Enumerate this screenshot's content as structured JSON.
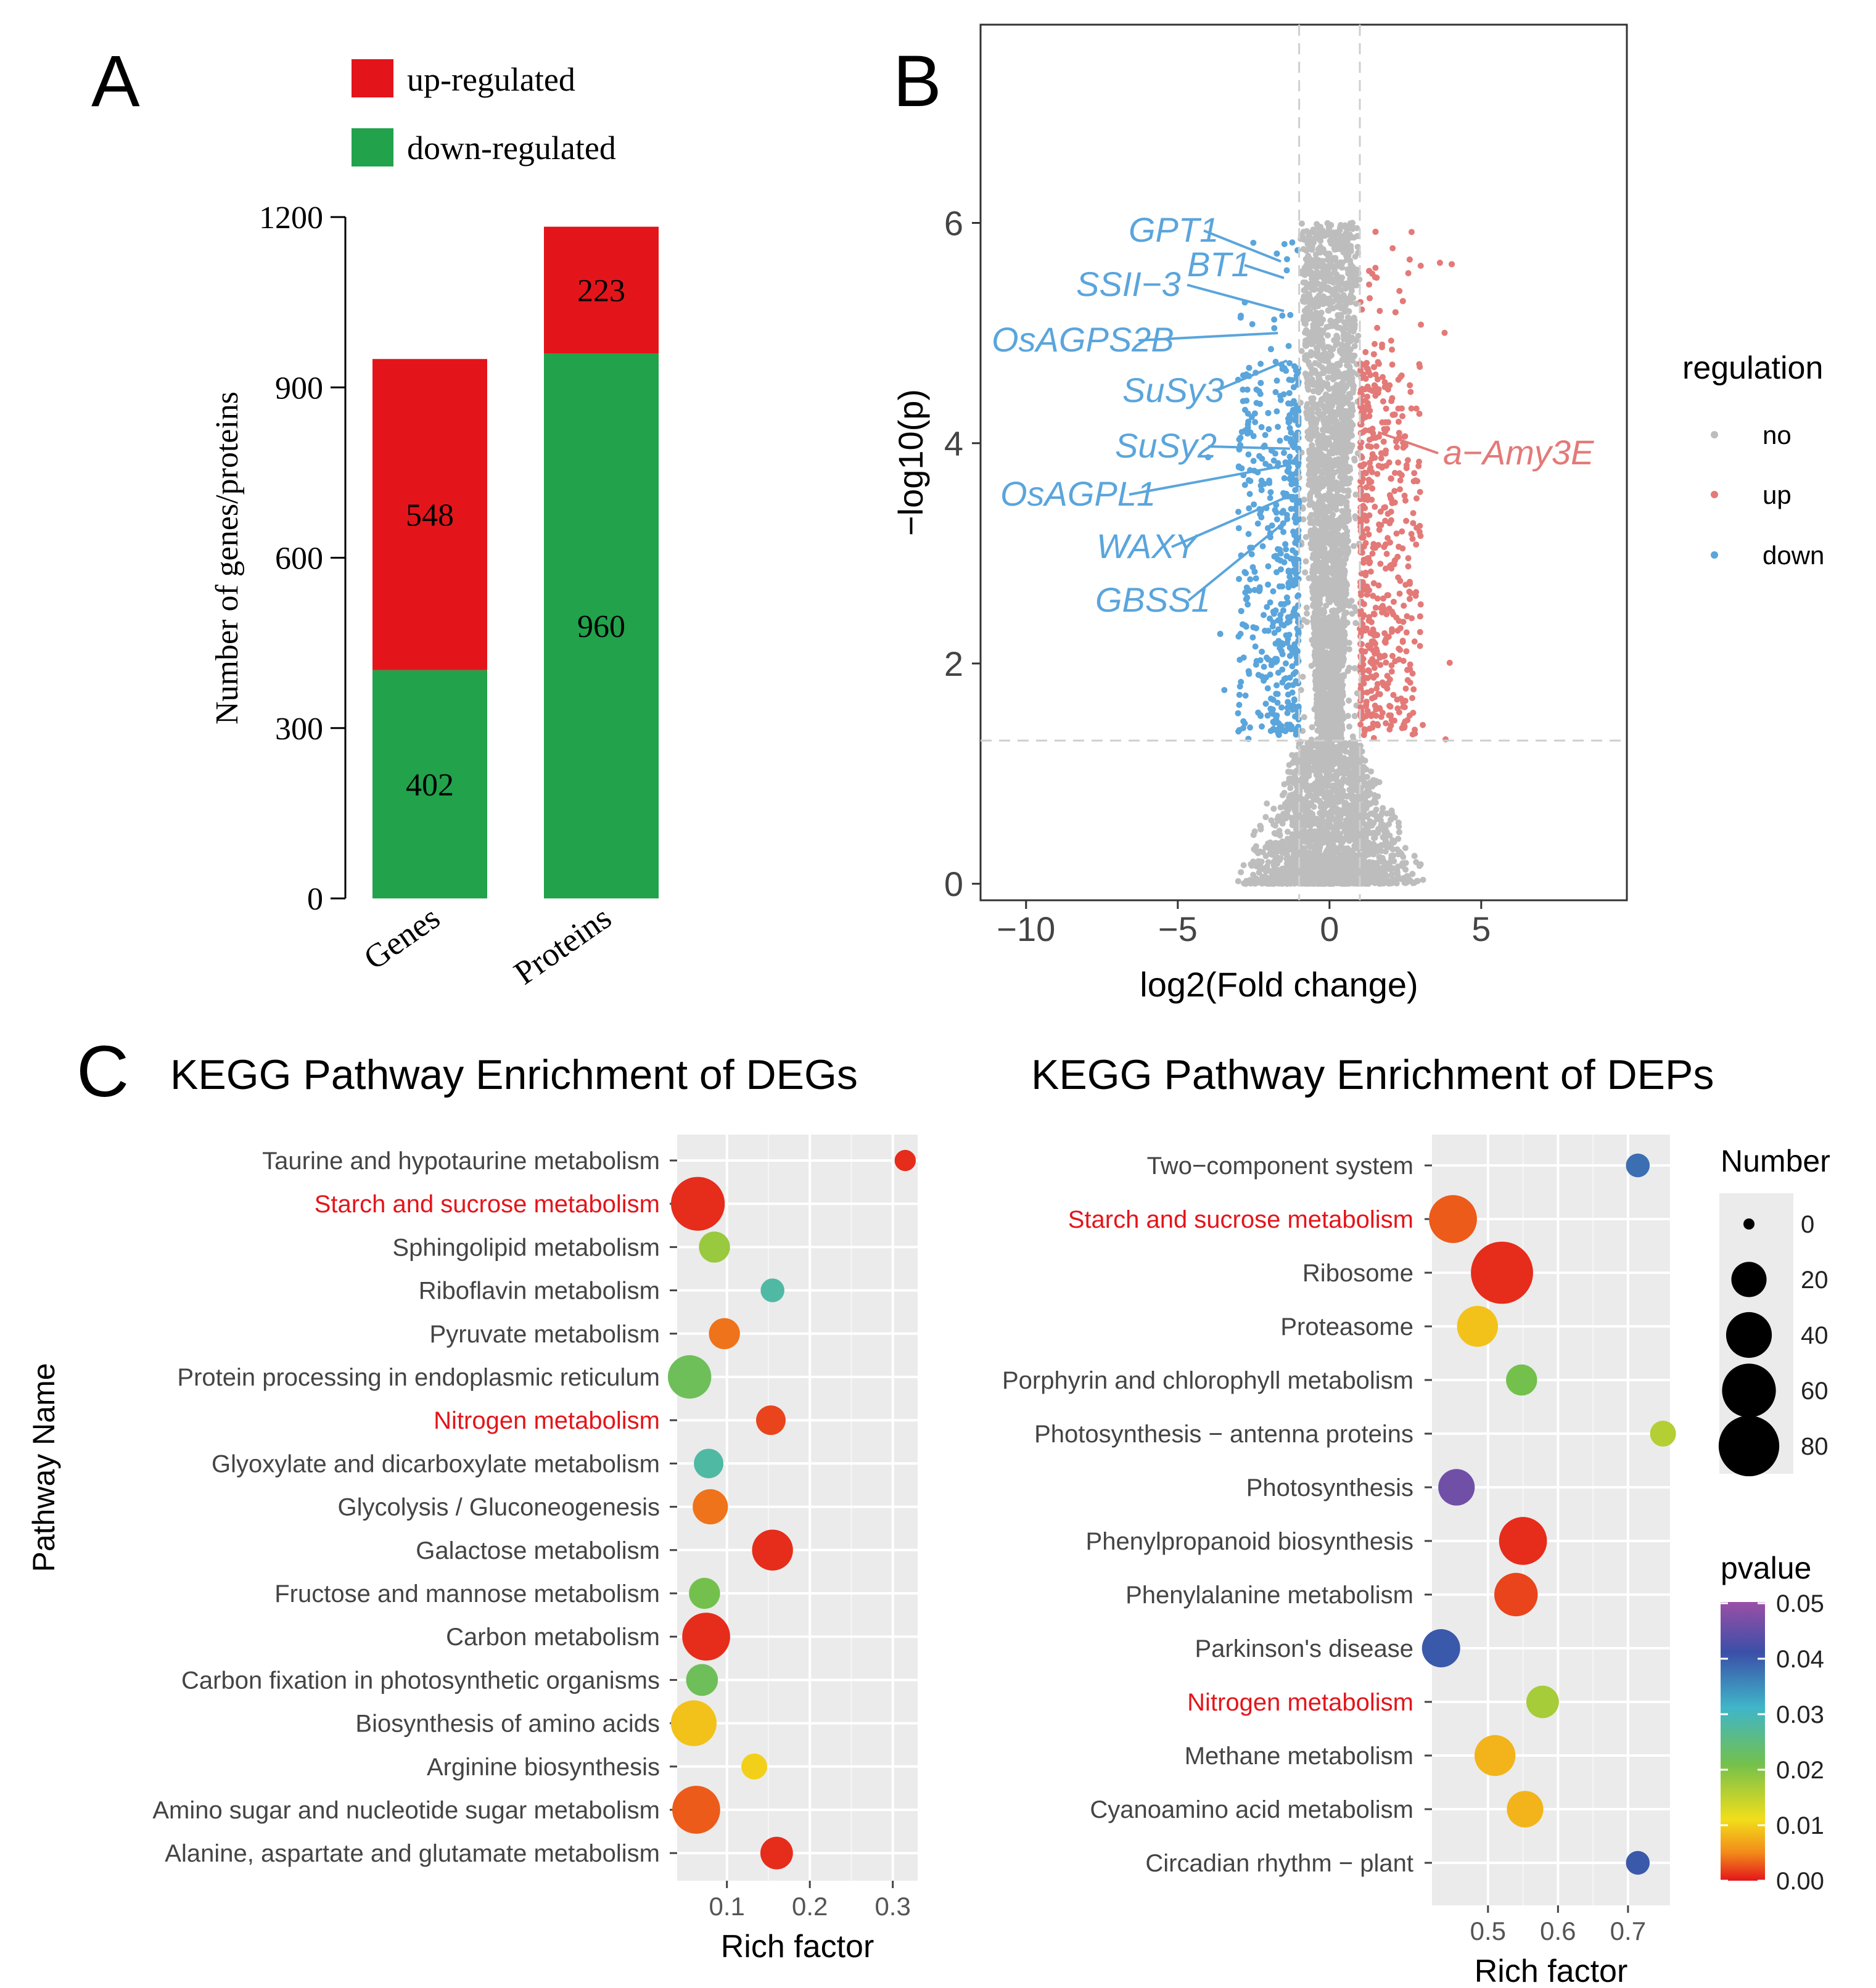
{
  "panel_labels": {
    "a": "A",
    "b": "B",
    "c": "C"
  },
  "colors": {
    "up": "#e3151b",
    "down": "#21a24b",
    "volcano_no": "#bdbdbd",
    "volcano_up": "#e37a78",
    "volcano_down": "#5aa5dc",
    "panel_bg": "#ebebeb",
    "grid": "#ffffff",
    "highlight": "#e3151b"
  },
  "chart_data": [
    {
      "id": "A",
      "type": "bar",
      "stacked": true,
      "categories": [
        "Genes",
        "Proteins"
      ],
      "series": [
        {
          "name": "down-regulated",
          "values": [
            402,
            960
          ]
        },
        {
          "name": "up-regulated",
          "values": [
            548,
            223
          ]
        }
      ],
      "legend": [
        "up-regulated",
        "down-regulated"
      ],
      "ylabel": "Number of genes/proteins",
      "yticks": [
        "0",
        "300",
        "600",
        "900",
        "1200"
      ],
      "ylim": [
        0,
        1200
      ],
      "legend_position": "top"
    },
    {
      "id": "B",
      "type": "scatter",
      "xlabel": "log2(Fold change)",
      "ylabel": "−log10(p)",
      "xticks": [
        "−10",
        "−5",
        "0",
        "5"
      ],
      "yticks": [
        "0",
        "2",
        "4",
        "6"
      ],
      "xlim": [
        -11.5,
        9.8
      ],
      "ylim": [
        -0.15,
        7.8
      ],
      "thresholds": {
        "x": [
          -1,
          1
        ],
        "y": 1.3
      },
      "legend_title": "regulation",
      "legend": [
        "no",
        "up",
        "down"
      ],
      "legend_position": "right",
      "labeled_points": [
        {
          "label": "GPT1",
          "group": "down",
          "x": -1.6,
          "y": 5.65
        },
        {
          "label": "BT1",
          "group": "down",
          "x": -1.5,
          "y": 5.5
        },
        {
          "label": "SSII−3",
          "group": "down",
          "x": -1.5,
          "y": 5.2
        },
        {
          "label": "OsAGPS2B",
          "group": "down",
          "x": -1.7,
          "y": 5.0
        },
        {
          "label": "SuSy3",
          "group": "down",
          "x": -1.4,
          "y": 4.75
        },
        {
          "label": "SuSy2",
          "group": "down",
          "x": -1.3,
          "y": 3.95
        },
        {
          "label": "OsAGPL1",
          "group": "down",
          "x": -1.4,
          "y": 3.8
        },
        {
          "label": "WAXY",
          "group": "down",
          "x": -1.5,
          "y": 3.5
        },
        {
          "label": "GBSS1",
          "group": "down",
          "x": -1.4,
          "y": 3.3
        },
        {
          "label": "a−Amy3E",
          "group": "up",
          "x": 1.6,
          "y": 4.1
        }
      ]
    },
    {
      "id": "C1",
      "type": "scatter",
      "title": "KEGG Pathway Enrichment of DEGs",
      "xlabel": "Rich factor",
      "ylabel": "Pathway Name",
      "xticks": [
        "0.1",
        "0.2",
        "0.3"
      ],
      "xlim": [
        0.04,
        0.33
      ],
      "categories": [
        "Taurine and hypotaurine metabolism",
        "Starch and sucrose metabolism",
        "Sphingolipid metabolism",
        "Riboflavin metabolism",
        "Pyruvate metabolism",
        "Protein processing in endoplasmic reticulum",
        "Nitrogen metabolism",
        "Glyoxylate and dicarboxylate metabolism",
        "Glycolysis / Gluconeogenesis",
        "Galactose metabolism",
        "Fructose and mannose metabolism",
        "Carbon metabolism",
        "Carbon fixation in photosynthetic organisms",
        "Biosynthesis of amino acids",
        "Arginine biosynthesis",
        "Amino sugar and nucleotide sugar metabolism",
        "Alanine, aspartate and glutamate metabolism"
      ],
      "highlighted": [
        "Starch and sucrose metabolism",
        "Nitrogen metabolism"
      ],
      "points": [
        {
          "rich": 0.315,
          "number": 4,
          "pvalue": 0.001
        },
        {
          "rich": 0.065,
          "number": 60,
          "pvalue": 0.001
        },
        {
          "rich": 0.085,
          "number": 14,
          "pvalue": 0.018
        },
        {
          "rich": 0.155,
          "number": 6,
          "pvalue": 0.028
        },
        {
          "rich": 0.097,
          "number": 14,
          "pvalue": 0.004
        },
        {
          "rich": 0.055,
          "number": 35,
          "pvalue": 0.022
        },
        {
          "rich": 0.153,
          "number": 12,
          "pvalue": 0.002
        },
        {
          "rich": 0.078,
          "number": 12,
          "pvalue": 0.028
        },
        {
          "rich": 0.08,
          "number": 20,
          "pvalue": 0.004
        },
        {
          "rich": 0.155,
          "number": 30,
          "pvalue": 0.001
        },
        {
          "rich": 0.073,
          "number": 14,
          "pvalue": 0.021
        },
        {
          "rich": 0.075,
          "number": 45,
          "pvalue": 0.001
        },
        {
          "rich": 0.07,
          "number": 15,
          "pvalue": 0.022
        },
        {
          "rich": 0.06,
          "number": 40,
          "pvalue": 0.009
        },
        {
          "rich": 0.133,
          "number": 8,
          "pvalue": 0.01
        },
        {
          "rich": 0.063,
          "number": 45,
          "pvalue": 0.003
        },
        {
          "rich": 0.16,
          "number": 16,
          "pvalue": 0.001
        }
      ]
    },
    {
      "id": "C2",
      "type": "scatter",
      "title": "KEGG Pathway Enrichment of DEPs",
      "xlabel": "Rich factor",
      "xticks": [
        "0.5",
        "0.6",
        "0.7"
      ],
      "xlim": [
        0.42,
        0.76
      ],
      "categories": [
        "Two−component system",
        "Starch and sucrose metabolism",
        "Ribosome",
        "Proteasome",
        "Porphyrin and chlorophyll metabolism",
        "Photosynthesis − antenna proteins",
        "Photosynthesis",
        "Phenylpropanoid biosynthesis",
        "Phenylalanine metabolism",
        "Parkinson's disease",
        "Nitrogen metabolism",
        "Methane metabolism",
        "Cyanoamino acid metabolism",
        "Circadian rhythm − plant"
      ],
      "highlighted": [
        "Starch and sucrose metabolism",
        "Nitrogen metabolism"
      ],
      "points": [
        {
          "rich": 0.714,
          "number": 6,
          "pvalue": 0.038
        },
        {
          "rich": 0.45,
          "number": 45,
          "pvalue": 0.003
        },
        {
          "rich": 0.52,
          "number": 85,
          "pvalue": 0.001
        },
        {
          "rich": 0.485,
          "number": 30,
          "pvalue": 0.009
        },
        {
          "rich": 0.548,
          "number": 14,
          "pvalue": 0.021
        },
        {
          "rich": 0.75,
          "number": 8,
          "pvalue": 0.016
        },
        {
          "rich": 0.455,
          "number": 22,
          "pvalue": 0.046
        },
        {
          "rich": 0.55,
          "number": 45,
          "pvalue": 0.001
        },
        {
          "rich": 0.54,
          "number": 35,
          "pvalue": 0.002
        },
        {
          "rich": 0.433,
          "number": 25,
          "pvalue": 0.04
        },
        {
          "rich": 0.578,
          "number": 16,
          "pvalue": 0.017
        },
        {
          "rich": 0.51,
          "number": 30,
          "pvalue": 0.008
        },
        {
          "rich": 0.553,
          "number": 22,
          "pvalue": 0.008
        },
        {
          "rich": 0.714,
          "number": 6,
          "pvalue": 0.04
        }
      ]
    }
  ],
  "size_legend": {
    "title": "Number",
    "values": [
      "0",
      "20",
      "40",
      "60",
      "80"
    ]
  },
  "color_legend": {
    "title": "pvalue",
    "ticks": [
      "0.05",
      "0.04",
      "0.03",
      "0.02",
      "0.01",
      "0.00"
    ]
  }
}
